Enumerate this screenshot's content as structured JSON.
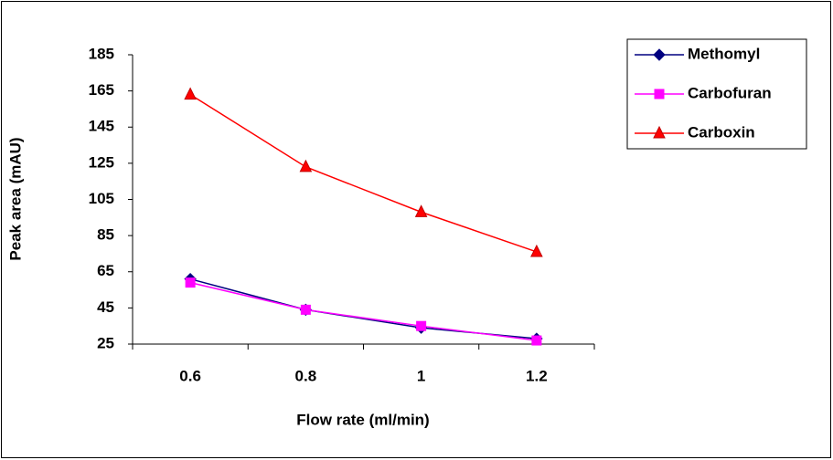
{
  "chart_data": {
    "type": "line",
    "x_label": "Flow rate (ml/min)",
    "y_label": "Peak area (mAU)",
    "categories": [
      "0.6",
      "0.8",
      "1",
      "1.2"
    ],
    "series": [
      {
        "name": "Methomyl",
        "color": "#000080",
        "marker": "diamond",
        "values": [
          61,
          44,
          34,
          28
        ]
      },
      {
        "name": "Carbofuran",
        "color": "#ff00ff",
        "marker": "square",
        "values": [
          59,
          44,
          35,
          27
        ]
      },
      {
        "name": "Carboxin",
        "color": "#ff0000",
        "marker": "triangle",
        "values": [
          163,
          123,
          98,
          76
        ]
      }
    ],
    "ylim": [
      25,
      185
    ],
    "yticks": [
      25,
      45,
      65,
      85,
      105,
      125,
      145,
      165,
      185
    ],
    "grid": false,
    "legend": "upper right"
  }
}
